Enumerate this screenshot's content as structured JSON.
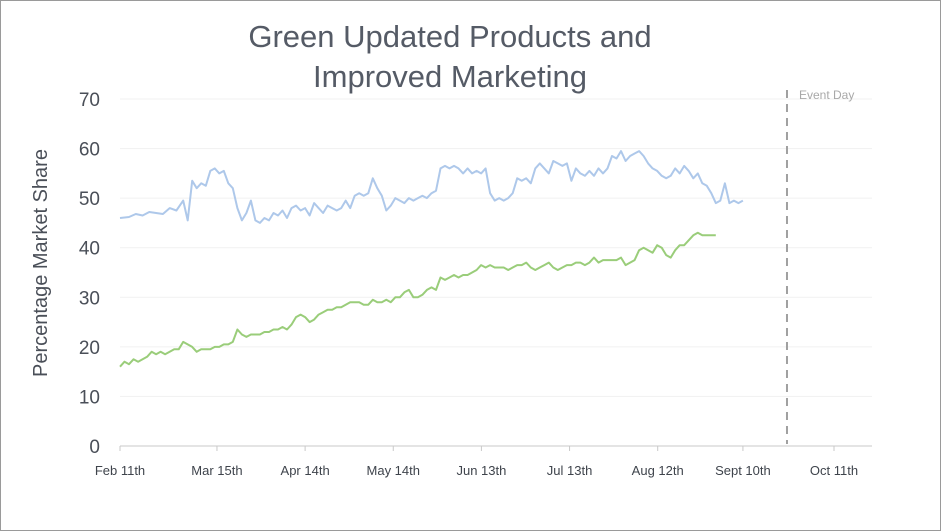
{
  "chart_data": {
    "type": "line",
    "title_lines": [
      "Green Updated Products and",
      "Improved Marketing"
    ],
    "ylabel": "Percentage Market Share",
    "xlabel": "",
    "ylim": [
      0,
      70
    ],
    "yticks": [
      0,
      10,
      20,
      30,
      40,
      50,
      60,
      70
    ],
    "x_ticks": [
      "Feb 11th",
      "Mar 15th",
      "Apr 14th",
      "May 14th",
      "Jun 13th",
      "Jul 13th",
      "Aug 12th",
      "Sept 10th",
      "Oct 11th"
    ],
    "grid": true,
    "annotation": {
      "label": "Event Day",
      "at_day": 227
    },
    "series": [
      {
        "color": "#aec8ea",
        "points": [
          [
            0,
            46
          ],
          [
            4,
            46.2
          ],
          [
            7,
            46.8
          ],
          [
            10,
            46.5
          ],
          [
            13,
            47.2
          ],
          [
            16,
            47
          ],
          [
            19,
            46.8
          ],
          [
            22,
            48
          ],
          [
            25,
            47.5
          ],
          [
            28,
            49.5
          ],
          [
            30,
            45.5
          ],
          [
            32,
            53.5
          ],
          [
            34,
            52
          ],
          [
            36,
            53
          ],
          [
            38,
            52.5
          ],
          [
            40,
            55.5
          ],
          [
            42,
            56
          ],
          [
            44,
            55
          ],
          [
            46,
            55.5
          ],
          [
            48,
            53
          ],
          [
            50,
            52
          ],
          [
            52,
            48
          ],
          [
            54,
            45.5
          ],
          [
            56,
            47
          ],
          [
            58,
            49.5
          ],
          [
            60,
            45.5
          ],
          [
            62,
            45
          ],
          [
            64,
            46
          ],
          [
            66,
            45.5
          ],
          [
            68,
            47
          ],
          [
            70,
            46.5
          ],
          [
            72,
            47.5
          ],
          [
            74,
            46
          ],
          [
            76,
            48
          ],
          [
            78,
            48.5
          ],
          [
            80,
            47.5
          ],
          [
            82,
            48
          ],
          [
            84,
            46.5
          ],
          [
            86,
            49
          ],
          [
            88,
            48
          ],
          [
            90,
            47
          ],
          [
            92,
            48.5
          ],
          [
            94,
            48
          ],
          [
            96,
            47.5
          ],
          [
            98,
            48
          ],
          [
            100,
            49.5
          ],
          [
            102,
            48
          ],
          [
            104,
            50.5
          ],
          [
            106,
            51
          ],
          [
            108,
            50.5
          ],
          [
            110,
            51
          ],
          [
            112,
            54
          ],
          [
            114,
            52
          ],
          [
            116,
            50.5
          ],
          [
            118,
            47.5
          ],
          [
            120,
            48.5
          ],
          [
            122,
            50
          ],
          [
            124,
            49.5
          ],
          [
            126,
            49
          ],
          [
            128,
            50
          ],
          [
            130,
            49.5
          ],
          [
            132,
            50
          ],
          [
            134,
            50.5
          ],
          [
            136,
            50
          ],
          [
            138,
            51
          ],
          [
            140,
            51.5
          ],
          [
            142,
            56
          ],
          [
            144,
            56.5
          ],
          [
            146,
            56
          ],
          [
            148,
            56.5
          ],
          [
            150,
            56
          ],
          [
            152,
            55
          ],
          [
            154,
            56
          ],
          [
            156,
            55
          ],
          [
            158,
            55.5
          ],
          [
            160,
            55
          ],
          [
            162,
            56
          ],
          [
            164,
            51
          ],
          [
            166,
            49.5
          ],
          [
            168,
            50
          ],
          [
            170,
            49.5
          ],
          [
            172,
            50
          ],
          [
            174,
            51
          ],
          [
            176,
            54
          ],
          [
            178,
            53.5
          ],
          [
            180,
            54
          ],
          [
            182,
            53
          ],
          [
            184,
            56
          ],
          [
            186,
            57
          ],
          [
            188,
            56
          ],
          [
            190,
            55
          ],
          [
            192,
            57.5
          ],
          [
            194,
            57
          ],
          [
            196,
            56.5
          ],
          [
            198,
            57
          ],
          [
            200,
            53.5
          ],
          [
            202,
            56
          ],
          [
            204,
            55
          ],
          [
            206,
            54.5
          ],
          [
            208,
            55.5
          ],
          [
            210,
            54.5
          ],
          [
            212,
            56
          ],
          [
            214,
            55
          ],
          [
            216,
            56
          ],
          [
            218,
            58.5
          ],
          [
            220,
            58
          ],
          [
            222,
            59.5
          ],
          [
            224,
            57.5
          ],
          [
            226,
            58.5
          ],
          [
            228,
            59
          ],
          [
            230,
            59.5
          ],
          [
            232,
            58.5
          ],
          [
            234,
            57
          ],
          [
            236,
            56
          ],
          [
            238,
            55.5
          ],
          [
            240,
            54.5
          ],
          [
            242,
            54
          ],
          [
            244,
            54.5
          ],
          [
            246,
            56
          ],
          [
            248,
            55
          ],
          [
            250,
            56.5
          ],
          [
            252,
            55.5
          ],
          [
            254,
            54
          ],
          [
            256,
            55
          ],
          [
            258,
            53
          ],
          [
            260,
            52.5
          ],
          [
            262,
            51
          ],
          [
            264,
            49
          ],
          [
            266,
            49.5
          ],
          [
            268,
            53
          ],
          [
            270,
            49
          ],
          [
            272,
            49.5
          ],
          [
            274,
            49
          ],
          [
            276,
            49.5
          ]
        ]
      },
      {
        "color": "#9acd7a",
        "points": [
          [
            0,
            16
          ],
          [
            2,
            17
          ],
          [
            4,
            16.5
          ],
          [
            6,
            17.5
          ],
          [
            8,
            17
          ],
          [
            10,
            17.5
          ],
          [
            12,
            18
          ],
          [
            14,
            19
          ],
          [
            16,
            18.5
          ],
          [
            18,
            19
          ],
          [
            20,
            18.5
          ],
          [
            22,
            19
          ],
          [
            24,
            19.5
          ],
          [
            26,
            19.5
          ],
          [
            28,
            21
          ],
          [
            30,
            20.5
          ],
          [
            32,
            20
          ],
          [
            34,
            19
          ],
          [
            36,
            19.5
          ],
          [
            38,
            19.5
          ],
          [
            40,
            19.5
          ],
          [
            42,
            20
          ],
          [
            44,
            20
          ],
          [
            46,
            20.5
          ],
          [
            48,
            20.5
          ],
          [
            50,
            21
          ],
          [
            52,
            23.5
          ],
          [
            54,
            22.5
          ],
          [
            56,
            22
          ],
          [
            58,
            22.5
          ],
          [
            60,
            22.5
          ],
          [
            62,
            22.5
          ],
          [
            64,
            23
          ],
          [
            66,
            23
          ],
          [
            68,
            23.5
          ],
          [
            70,
            23.5
          ],
          [
            72,
            24
          ],
          [
            74,
            23.5
          ],
          [
            76,
            24.5
          ],
          [
            78,
            26
          ],
          [
            80,
            26.5
          ],
          [
            82,
            26
          ],
          [
            84,
            25
          ],
          [
            86,
            25.5
          ],
          [
            88,
            26.5
          ],
          [
            90,
            27
          ],
          [
            92,
            27.5
          ],
          [
            94,
            27.5
          ],
          [
            96,
            28
          ],
          [
            98,
            28
          ],
          [
            100,
            28.5
          ],
          [
            102,
            29
          ],
          [
            104,
            29
          ],
          [
            106,
            29
          ],
          [
            108,
            28.5
          ],
          [
            110,
            28.5
          ],
          [
            112,
            29.5
          ],
          [
            114,
            29
          ],
          [
            116,
            29
          ],
          [
            118,
            29.5
          ],
          [
            120,
            29
          ],
          [
            122,
            30
          ],
          [
            124,
            30
          ],
          [
            126,
            31
          ],
          [
            128,
            31.5
          ],
          [
            130,
            30
          ],
          [
            132,
            30
          ],
          [
            134,
            30.5
          ],
          [
            136,
            31.5
          ],
          [
            138,
            32
          ],
          [
            140,
            31.5
          ],
          [
            142,
            34
          ],
          [
            144,
            33.5
          ],
          [
            146,
            34
          ],
          [
            148,
            34.5
          ],
          [
            150,
            34
          ],
          [
            152,
            34.5
          ],
          [
            154,
            34.5
          ],
          [
            156,
            35
          ],
          [
            158,
            35.5
          ],
          [
            160,
            36.5
          ],
          [
            162,
            36
          ],
          [
            164,
            36.5
          ],
          [
            166,
            36
          ],
          [
            168,
            36
          ],
          [
            170,
            36
          ],
          [
            172,
            35.5
          ],
          [
            174,
            36
          ],
          [
            176,
            36.5
          ],
          [
            178,
            36.5
          ],
          [
            180,
            37
          ],
          [
            182,
            36
          ],
          [
            184,
            35.5
          ],
          [
            186,
            36
          ],
          [
            188,
            36.5
          ],
          [
            190,
            37
          ],
          [
            192,
            36
          ],
          [
            194,
            35.5
          ],
          [
            196,
            36
          ],
          [
            198,
            36.5
          ],
          [
            200,
            36.5
          ],
          [
            202,
            37
          ],
          [
            204,
            37
          ],
          [
            206,
            36.5
          ],
          [
            208,
            37
          ],
          [
            210,
            38
          ],
          [
            212,
            37
          ],
          [
            214,
            37.5
          ],
          [
            216,
            37.5
          ],
          [
            218,
            37.5
          ],
          [
            220,
            37.5
          ],
          [
            222,
            38
          ],
          [
            224,
            36.5
          ],
          [
            226,
            37
          ],
          [
            228,
            37.5
          ],
          [
            230,
            39.5
          ],
          [
            232,
            40
          ],
          [
            234,
            39.5
          ],
          [
            236,
            39
          ],
          [
            238,
            40.5
          ],
          [
            240,
            40
          ],
          [
            242,
            38.5
          ],
          [
            244,
            38
          ],
          [
            246,
            39.5
          ],
          [
            248,
            40.5
          ],
          [
            250,
            40.5
          ],
          [
            252,
            41.5
          ],
          [
            254,
            42.5
          ],
          [
            256,
            43
          ],
          [
            258,
            42.5
          ],
          [
            260,
            42.5
          ],
          [
            262,
            42.5
          ],
          [
            264,
            42.5
          ]
        ]
      }
    ]
  }
}
